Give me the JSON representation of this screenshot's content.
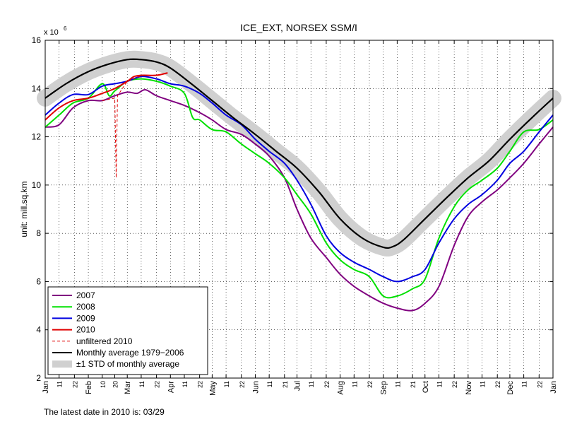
{
  "chart_data": {
    "type": "line",
    "title": "ICE_EXT, NORSEX SSM/I",
    "ylabel": "unit: mill.sq.km",
    "y_multiplier_label": "x 10",
    "y_multiplier_exponent": "6",
    "xlabel": "",
    "ylim": [
      2,
      16
    ],
    "xlim": [
      0,
      365
    ],
    "y_ticks": [
      2,
      4,
      6,
      8,
      10,
      12,
      14,
      16
    ],
    "grid": true,
    "legend_position": "bottom-left",
    "x_ticks": [
      {
        "day": 0,
        "label": "Jan"
      },
      {
        "day": 10,
        "label": "11"
      },
      {
        "day": 21,
        "label": "22"
      },
      {
        "day": 31,
        "label": "Feb"
      },
      {
        "day": 41,
        "label": "10"
      },
      {
        "day": 50,
        "label": "20"
      },
      {
        "day": 59,
        "label": "Mar"
      },
      {
        "day": 69,
        "label": "11"
      },
      {
        "day": 80,
        "label": "22"
      },
      {
        "day": 90,
        "label": "Apr"
      },
      {
        "day": 100,
        "label": "11"
      },
      {
        "day": 111,
        "label": "22"
      },
      {
        "day": 120,
        "label": "May"
      },
      {
        "day": 130,
        "label": "11"
      },
      {
        "day": 141,
        "label": "22"
      },
      {
        "day": 151,
        "label": "Jun"
      },
      {
        "day": 161,
        "label": "11"
      },
      {
        "day": 172,
        "label": "21"
      },
      {
        "day": 181,
        "label": "Jul"
      },
      {
        "day": 191,
        "label": "11"
      },
      {
        "day": 202,
        "label": "22"
      },
      {
        "day": 212,
        "label": "Aug"
      },
      {
        "day": 222,
        "label": "11"
      },
      {
        "day": 233,
        "label": "22"
      },
      {
        "day": 243,
        "label": "Sep"
      },
      {
        "day": 253,
        "label": "11"
      },
      {
        "day": 264,
        "label": "21"
      },
      {
        "day": 273,
        "label": "Oct"
      },
      {
        "day": 283,
        "label": "11"
      },
      {
        "day": 294,
        "label": "22"
      },
      {
        "day": 304,
        "label": "Nov"
      },
      {
        "day": 314,
        "label": "11"
      },
      {
        "day": 325,
        "label": "22"
      },
      {
        "day": 334,
        "label": "Dec"
      },
      {
        "day": 344,
        "label": "11"
      },
      {
        "day": 355,
        "label": "22"
      },
      {
        "day": 365,
        "label": "Jan"
      }
    ],
    "series": [
      {
        "name": "2007",
        "color": "#800080",
        "style": "solid",
        "points": [
          [
            0,
            12.4
          ],
          [
            10,
            12.5
          ],
          [
            20,
            13.2
          ],
          [
            31,
            13.5
          ],
          [
            41,
            13.5
          ],
          [
            50,
            13.7
          ],
          [
            59,
            13.85
          ],
          [
            66,
            13.8
          ],
          [
            72,
            13.95
          ],
          [
            80,
            13.7
          ],
          [
            90,
            13.5
          ],
          [
            100,
            13.3
          ],
          [
            111,
            13.0
          ],
          [
            120,
            12.7
          ],
          [
            130,
            12.3
          ],
          [
            141,
            12.1
          ],
          [
            151,
            11.7
          ],
          [
            161,
            11.2
          ],
          [
            172,
            10.3
          ],
          [
            181,
            9.0
          ],
          [
            191,
            7.8
          ],
          [
            202,
            7.0
          ],
          [
            212,
            6.3
          ],
          [
            222,
            5.8
          ],
          [
            233,
            5.4
          ],
          [
            243,
            5.1
          ],
          [
            253,
            4.9
          ],
          [
            264,
            4.8
          ],
          [
            273,
            5.1
          ],
          [
            283,
            5.8
          ],
          [
            294,
            7.5
          ],
          [
            304,
            8.7
          ],
          [
            314,
            9.3
          ],
          [
            325,
            9.8
          ],
          [
            334,
            10.3
          ],
          [
            344,
            10.9
          ],
          [
            355,
            11.7
          ],
          [
            365,
            12.4
          ]
        ]
      },
      {
        "name": "2008",
        "color": "#00e000",
        "style": "solid",
        "points": [
          [
            0,
            12.4
          ],
          [
            10,
            12.9
          ],
          [
            20,
            13.4
          ],
          [
            31,
            13.6
          ],
          [
            41,
            14.2
          ],
          [
            46,
            13.7
          ],
          [
            50,
            13.9
          ],
          [
            59,
            14.3
          ],
          [
            69,
            14.4
          ],
          [
            80,
            14.3
          ],
          [
            90,
            14.1
          ],
          [
            100,
            13.8
          ],
          [
            106,
            12.8
          ],
          [
            111,
            12.7
          ],
          [
            120,
            12.3
          ],
          [
            130,
            12.2
          ],
          [
            141,
            11.7
          ],
          [
            151,
            11.3
          ],
          [
            161,
            10.9
          ],
          [
            172,
            10.3
          ],
          [
            181,
            9.6
          ],
          [
            191,
            8.8
          ],
          [
            202,
            7.6
          ],
          [
            212,
            6.9
          ],
          [
            222,
            6.5
          ],
          [
            233,
            6.2
          ],
          [
            243,
            5.4
          ],
          [
            253,
            5.4
          ],
          [
            264,
            5.7
          ],
          [
            273,
            6.1
          ],
          [
            283,
            7.8
          ],
          [
            294,
            9.1
          ],
          [
            304,
            9.8
          ],
          [
            314,
            10.2
          ],
          [
            325,
            10.7
          ],
          [
            334,
            11.4
          ],
          [
            344,
            12.2
          ],
          [
            355,
            12.3
          ],
          [
            365,
            12.7
          ]
        ]
      },
      {
        "name": "2009",
        "color": "#0000e0",
        "style": "solid",
        "points": [
          [
            0,
            12.9
          ],
          [
            10,
            13.4
          ],
          [
            20,
            13.75
          ],
          [
            31,
            13.75
          ],
          [
            41,
            14.1
          ],
          [
            50,
            14.2
          ],
          [
            59,
            14.3
          ],
          [
            69,
            14.5
          ],
          [
            80,
            14.4
          ],
          [
            90,
            14.2
          ],
          [
            100,
            14.1
          ],
          [
            111,
            13.8
          ],
          [
            120,
            13.4
          ],
          [
            130,
            12.9
          ],
          [
            141,
            12.5
          ],
          [
            151,
            11.9
          ],
          [
            161,
            11.4
          ],
          [
            172,
            10.9
          ],
          [
            181,
            10.2
          ],
          [
            191,
            9.2
          ],
          [
            202,
            7.9
          ],
          [
            212,
            7.2
          ],
          [
            222,
            6.8
          ],
          [
            233,
            6.5
          ],
          [
            243,
            6.2
          ],
          [
            253,
            6.0
          ],
          [
            264,
            6.2
          ],
          [
            273,
            6.5
          ],
          [
            283,
            7.6
          ],
          [
            294,
            8.6
          ],
          [
            304,
            9.2
          ],
          [
            314,
            9.6
          ],
          [
            325,
            10.2
          ],
          [
            334,
            10.9
          ],
          [
            344,
            11.4
          ],
          [
            355,
            12.2
          ],
          [
            365,
            12.9
          ]
        ]
      },
      {
        "name": "2010",
        "color": "#e00000",
        "style": "solid",
        "points": [
          [
            0,
            12.7
          ],
          [
            10,
            13.2
          ],
          [
            20,
            13.5
          ],
          [
            31,
            13.6
          ],
          [
            41,
            13.8
          ],
          [
            50,
            14.0
          ],
          [
            59,
            14.3
          ],
          [
            64,
            14.5
          ],
          [
            70,
            14.55
          ],
          [
            80,
            14.55
          ],
          [
            88,
            14.65
          ]
        ]
      },
      {
        "name": "unfiltered 2010",
        "color": "#e00000",
        "style": "dashed",
        "points": [
          [
            41,
            13.5
          ],
          [
            50,
            13.6
          ],
          [
            51,
            10.3
          ],
          [
            52,
            13.7
          ],
          [
            59,
            14.3
          ],
          [
            70,
            14.55
          ],
          [
            80,
            14.55
          ],
          [
            88,
            14.65
          ]
        ]
      },
      {
        "name": "Monthly average 1979−2006",
        "color": "#000000",
        "style": "solid",
        "points": [
          [
            0,
            13.6
          ],
          [
            15,
            14.2
          ],
          [
            31,
            14.7
          ],
          [
            45,
            15.0
          ],
          [
            59,
            15.2
          ],
          [
            69,
            15.2
          ],
          [
            80,
            15.1
          ],
          [
            90,
            14.85
          ],
          [
            105,
            14.2
          ],
          [
            120,
            13.5
          ],
          [
            135,
            12.8
          ],
          [
            151,
            12.1
          ],
          [
            166,
            11.4
          ],
          [
            181,
            10.7
          ],
          [
            197,
            9.7
          ],
          [
            212,
            8.6
          ],
          [
            228,
            7.8
          ],
          [
            243,
            7.42
          ],
          [
            250,
            7.45
          ],
          [
            258,
            7.75
          ],
          [
            273,
            8.6
          ],
          [
            289,
            9.5
          ],
          [
            304,
            10.3
          ],
          [
            319,
            11.0
          ],
          [
            334,
            11.9
          ],
          [
            350,
            12.8
          ],
          [
            365,
            13.6
          ]
        ]
      }
    ],
    "std_band": {
      "name": "±1 STD of monthly average",
      "color": "#d0d0d0",
      "width": 0.35
    }
  },
  "footnote": "The latest date in 2010 is: 03/29"
}
